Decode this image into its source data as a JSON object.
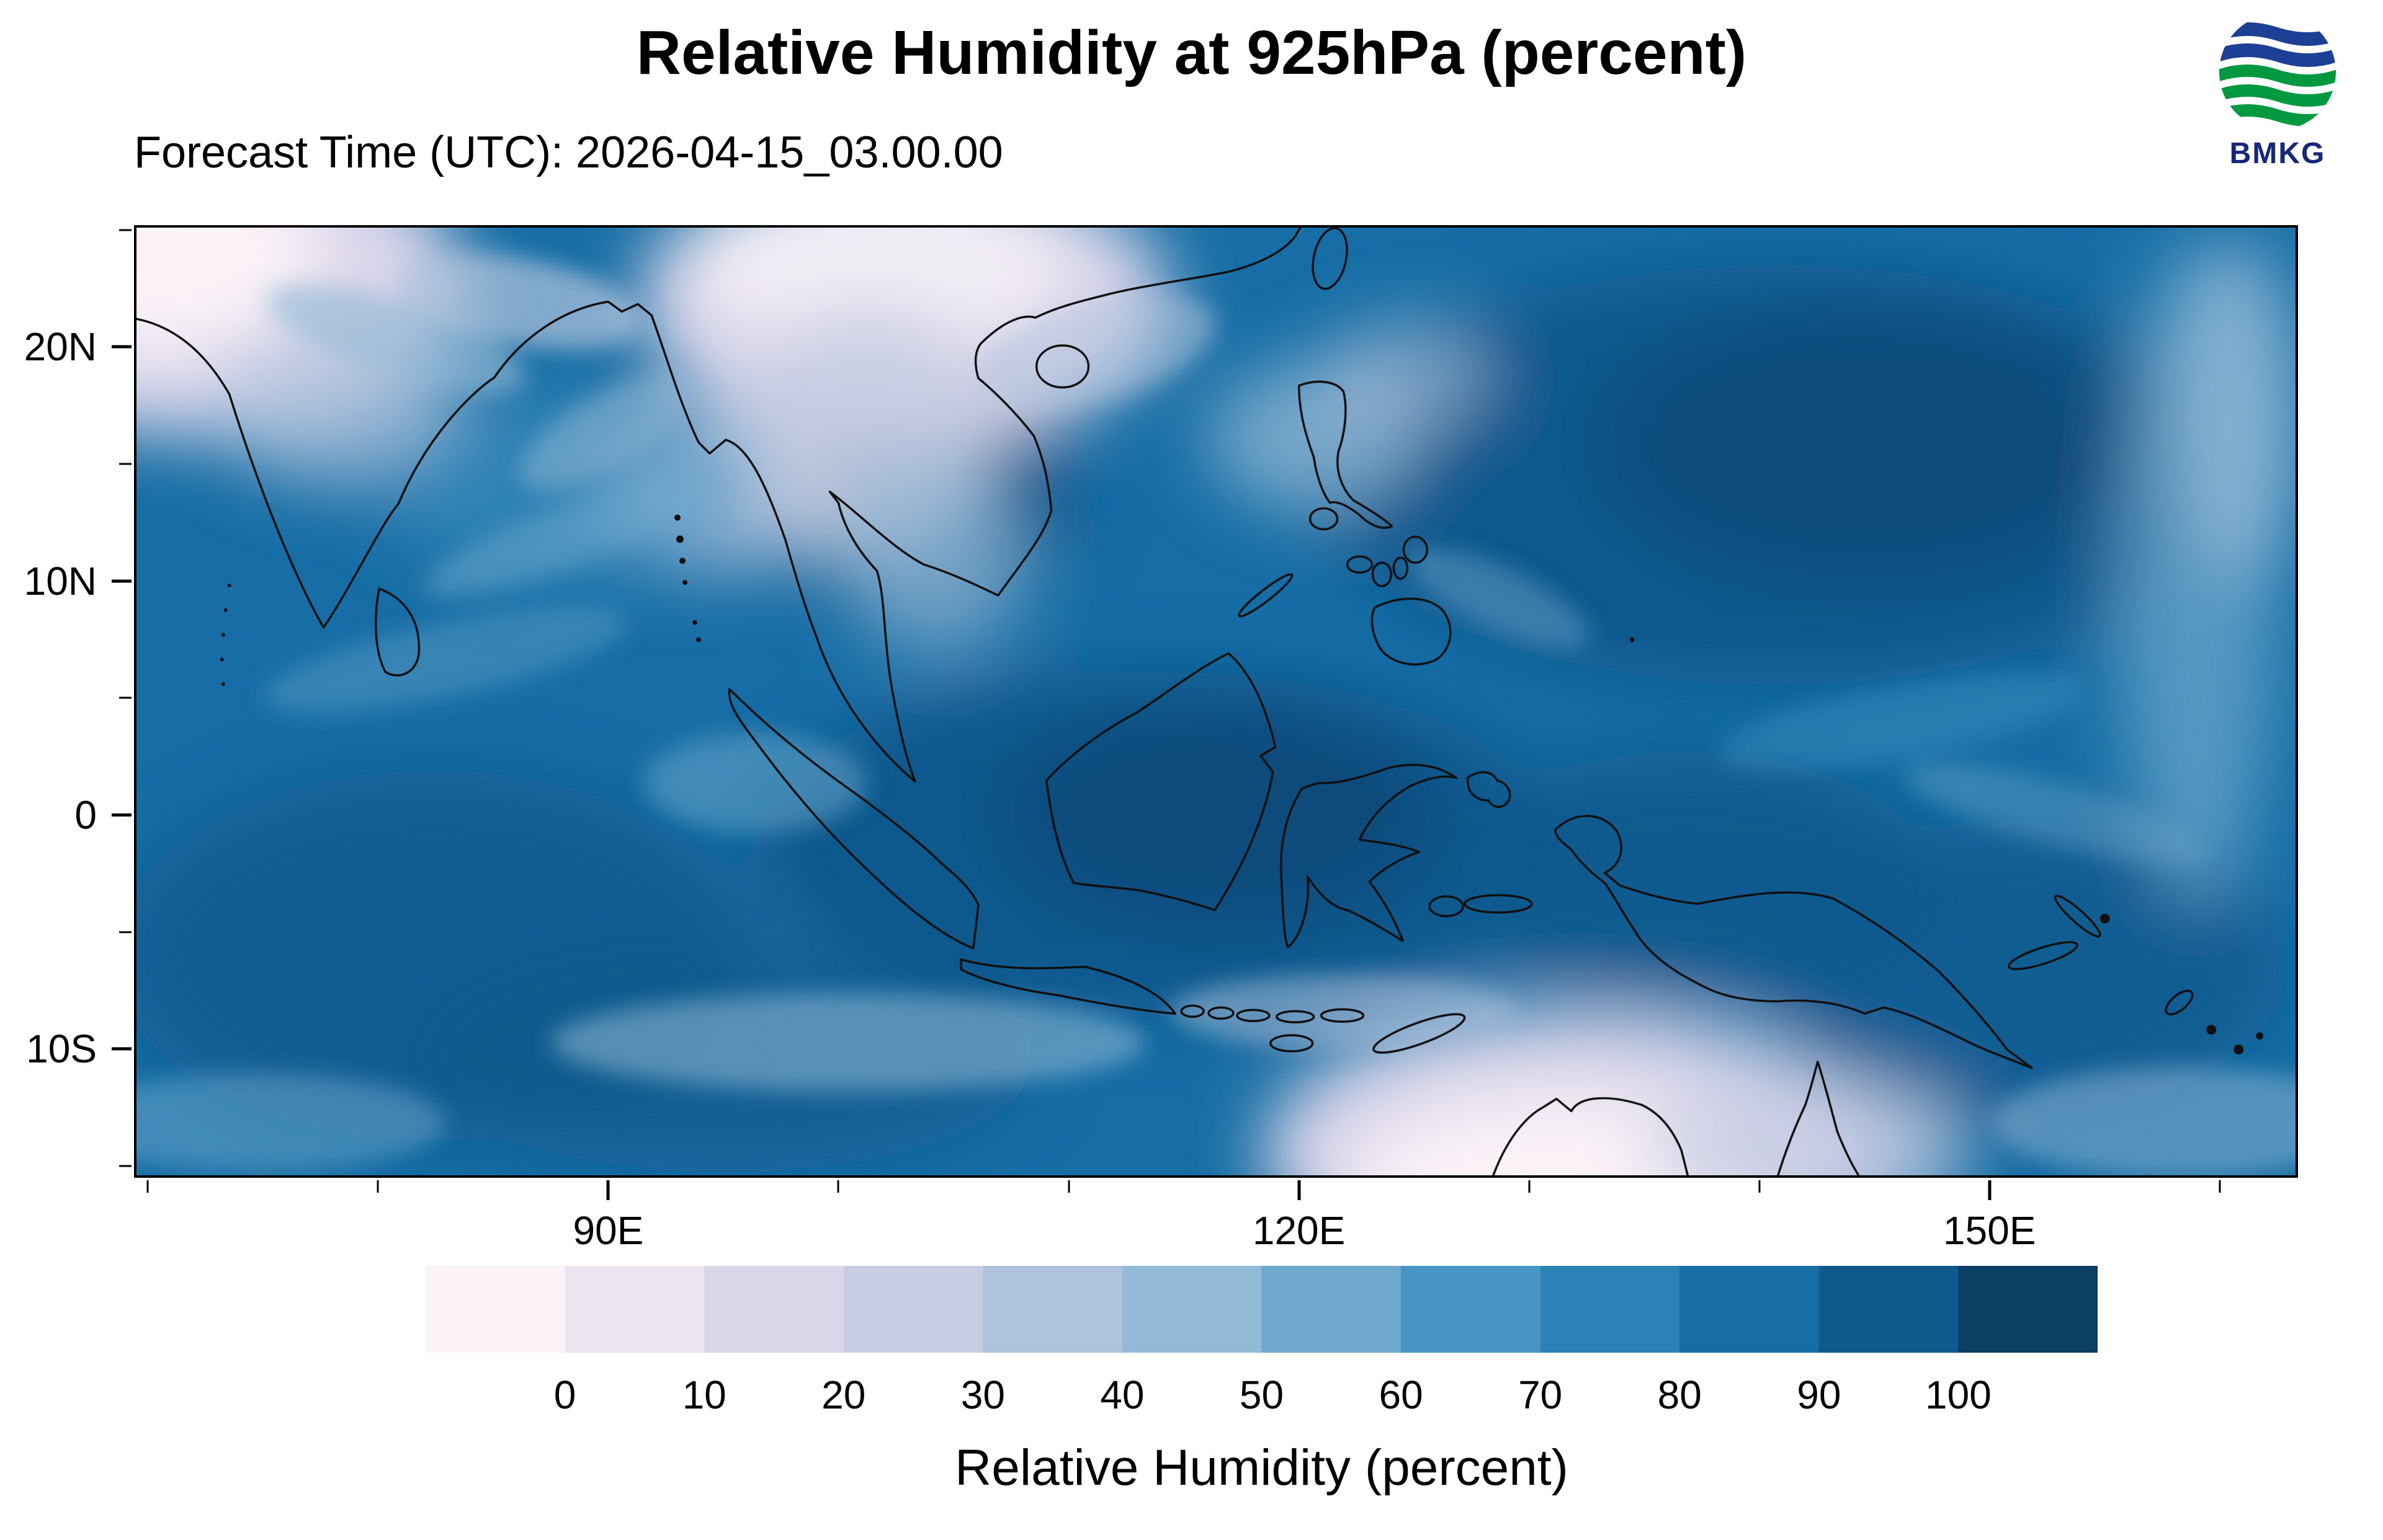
{
  "header": {
    "title": "Relative Humidity at 925hPa (percent)",
    "forecast_time": "Forecast Time (UTC): 2026-04-15_03.00.00",
    "logo_text": "BMKG",
    "logo_colors": {
      "blue": "#1d3f96",
      "green": "#00993f",
      "text": "#16277d"
    }
  },
  "map": {
    "y_ticks": [
      {
        "label": "20N",
        "lat": 20
      },
      {
        "label": "10N",
        "lat": 10
      },
      {
        "label": "0",
        "lat": 0
      },
      {
        "label": "10S",
        "lat": -10
      }
    ],
    "y_minor_ticks": [
      25,
      15,
      5,
      -5,
      -15
    ],
    "x_ticks": [
      {
        "label": "90E",
        "lon": 90
      },
      {
        "label": "120E",
        "lon": 120
      },
      {
        "label": "150E",
        "lon": 150
      }
    ],
    "x_minor_ticks": [
      70,
      80,
      100,
      110,
      130,
      140,
      160
    ]
  },
  "colorbar": {
    "labels": [
      "0",
      "10",
      "20",
      "30",
      "40",
      "50",
      "60",
      "70",
      "80",
      "90",
      "100"
    ],
    "colors": [
      "#fbf3f8",
      "#ebe5f1",
      "#dad6ea",
      "#c6cce2",
      "#b0c3dc",
      "#93b9d6",
      "#6ea9cd",
      "#4795c3",
      "#2a82b6",
      "#176ea6",
      "#10598d",
      "#0c3f63"
    ],
    "caption": "Relative Humidity (percent)"
  },
  "chart_data": {
    "type": "heatmap",
    "title": "Relative Humidity at 925hPa (percent)",
    "subtitle": "Forecast Time (UTC): 2026-04-15_03.00.00",
    "variable": "Relative Humidity",
    "units": "percent",
    "pressure_level": "925hPa",
    "lon_range": [
      69.4,
      163.4
    ],
    "lat_range": [
      -15.5,
      25.2
    ],
    "x_tick_lons": [
      90,
      120,
      150
    ],
    "y_tick_lats": [
      20,
      10,
      0,
      -10
    ],
    "colorbar_levels": [
      0,
      10,
      20,
      30,
      40,
      50,
      60,
      70,
      80,
      90,
      100
    ],
    "colorbar_colors": [
      "#fbf3f8",
      "#ebe5f1",
      "#dad6ea",
      "#c6cce2",
      "#b0c3dc",
      "#93b9d6",
      "#6ea9cd",
      "#4795c3",
      "#2a82b6",
      "#176ea6",
      "#10598d",
      "#0c3f63"
    ],
    "legend_position": "bottom",
    "field_features": [
      "Very dry air (0-30%) over northwest India / Pakistan in the top-left corner",
      "Dry tongue (20-50%) over northern Indochina and the northern South China Sea",
      "Very dry air (0-30%) over northern interior Australia at the bottom centre-right",
      "Very humid air (80-100%) across the equatorial seas, Sumatra, Borneo and New Guinea",
      "Broad humid region (80-95%) over the western Pacific east and north of the Philippines",
      "Lighter drier filaments (50-70%) along 10S and near the eastern edge of the map"
    ]
  }
}
